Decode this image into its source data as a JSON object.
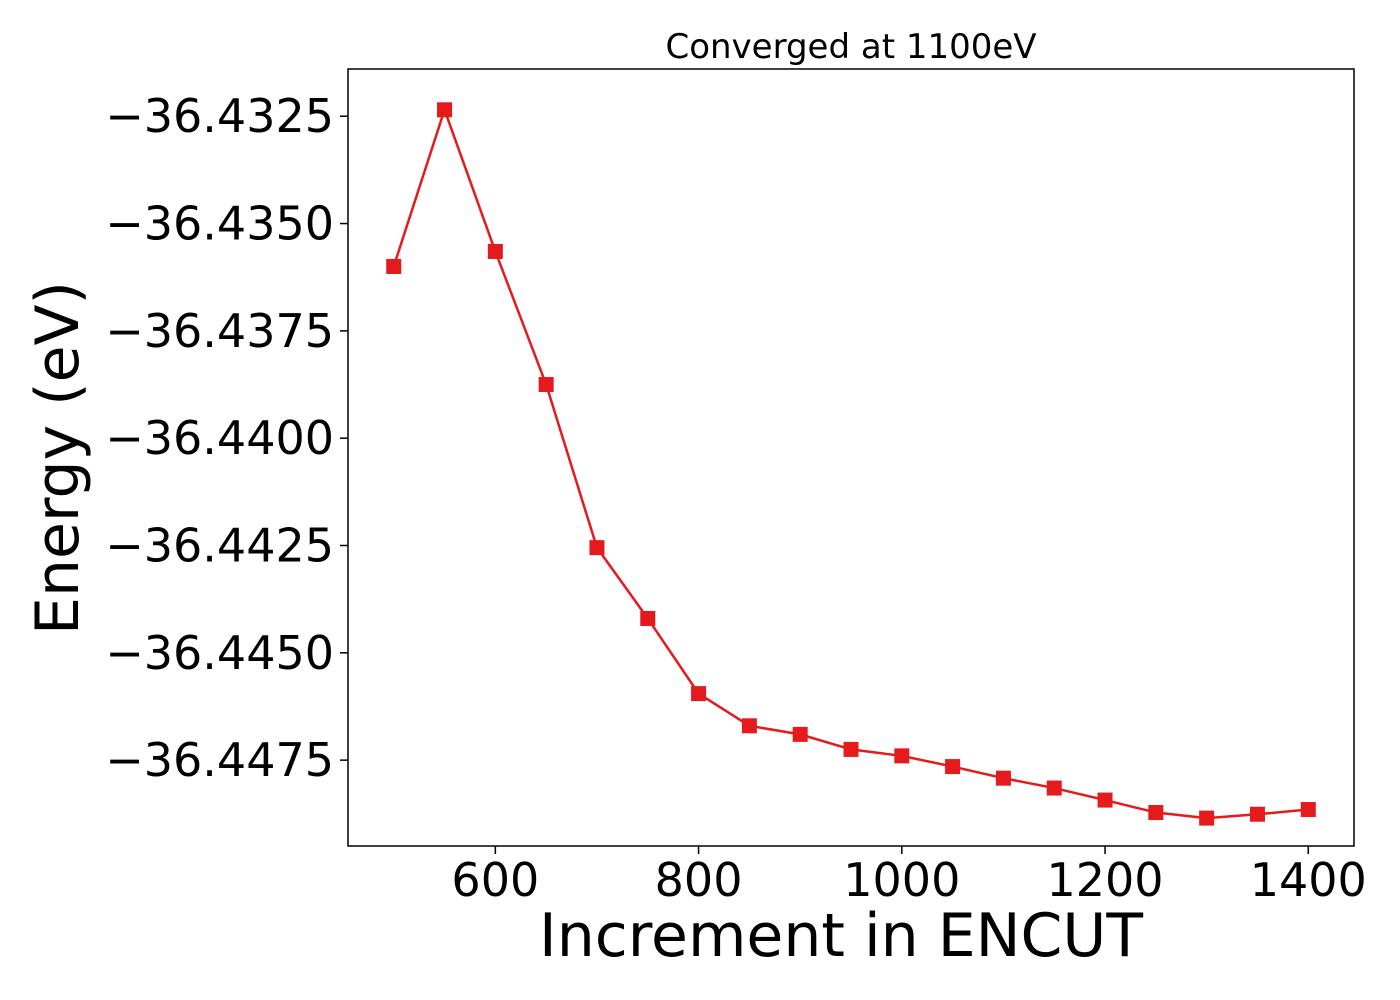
{
  "chart_data": {
    "type": "line",
    "title": "Converged at 1100eV",
    "xlabel": "Increment in ENCUT",
    "ylabel": "Energy (eV)",
    "x": [
      500,
      550,
      600,
      650,
      700,
      750,
      800,
      850,
      900,
      950,
      1000,
      1050,
      1100,
      1150,
      1200,
      1250,
      1300,
      1350,
      1400
    ],
    "series": [
      {
        "values": [
          -36.436,
          -36.43235,
          -36.43565,
          -36.43875,
          -36.44255,
          -36.4442,
          -36.44595,
          -36.4467,
          -36.4469,
          -36.44725,
          -36.4474,
          -36.44765,
          -36.44792,
          -36.44815,
          -36.44843,
          -36.44872,
          -36.44885,
          -36.44876,
          -36.44865
        ],
        "color": "#e41a1c",
        "marker": "square"
      }
    ],
    "xlim": [
      455,
      1445
    ],
    "ylim": [
      -36.4495,
      -36.4314
    ],
    "xticks": [
      600,
      800,
      1000,
      1200,
      1400
    ],
    "xtick_labels": [
      "600",
      "800",
      "1000",
      "1200",
      "1400"
    ],
    "yticks": [
      -36.4325,
      -36.435,
      -36.4375,
      -36.44,
      -36.4425,
      -36.445,
      -36.4475
    ],
    "ytick_labels": [
      "−36.4325",
      "−36.4350",
      "−36.4375",
      "−36.4400",
      "−36.4425",
      "−36.4450",
      "−36.4475"
    ],
    "grid": false,
    "legend": "none"
  }
}
